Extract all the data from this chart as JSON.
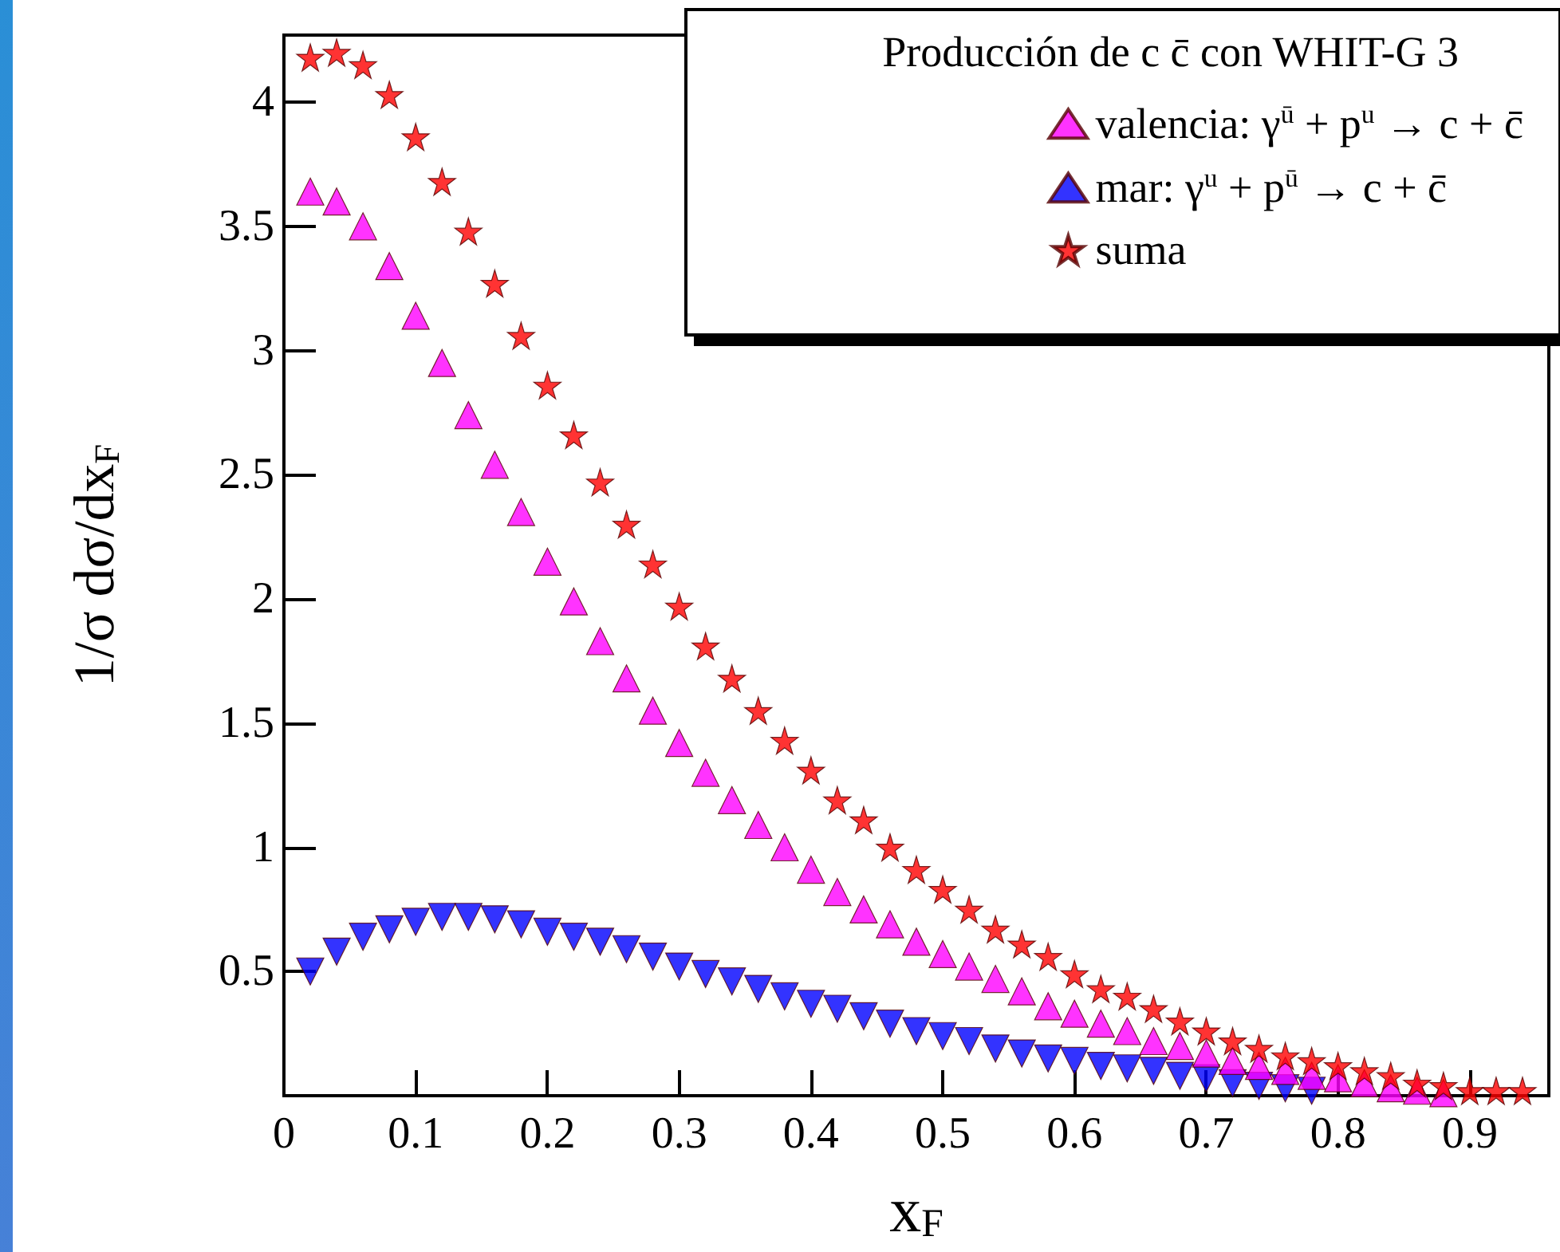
{
  "chart_data": {
    "type": "scatter",
    "xlabel": "x$_{F}$",
    "ylabel": "1/σ dσ/dx$_{F}$",
    "legend_title": "Producción de c c̄ con WHIT-G 3",
    "legend": "top right",
    "grid": false,
    "xlim": [
      0,
      0.96
    ],
    "ylim": [
      0,
      4.27
    ],
    "xticks": [
      0,
      0.1,
      0.2,
      0.3,
      0.4,
      0.5,
      0.6,
      0.7,
      0.8,
      0.9
    ],
    "yticks": [
      0.5,
      1,
      1.5,
      2,
      2.5,
      3,
      3.5,
      4
    ],
    "series": [
      {
        "name": "valencia: γ$^{ū}$ + p$^{u}$ → c + c̄",
        "color": "#ff00ff",
        "marker": "triangle",
        "x": [
          0.02,
          0.04,
          0.06,
          0.08,
          0.1,
          0.12,
          0.14,
          0.16,
          0.18,
          0.2,
          0.22,
          0.24,
          0.26,
          0.28,
          0.3,
          0.32,
          0.34,
          0.36,
          0.38,
          0.4,
          0.42,
          0.44,
          0.46,
          0.48,
          0.5,
          0.52,
          0.54,
          0.56,
          0.58,
          0.6,
          0.62,
          0.64,
          0.66,
          0.68,
          0.7,
          0.72,
          0.74,
          0.76,
          0.78,
          0.8,
          0.82,
          0.84,
          0.86,
          0.88
        ],
        "values": [
          3.64,
          3.6,
          3.5,
          3.34,
          3.14,
          2.95,
          2.74,
          2.54,
          2.35,
          2.15,
          1.99,
          1.83,
          1.68,
          1.55,
          1.42,
          1.3,
          1.19,
          1.09,
          1.0,
          0.91,
          0.82,
          0.75,
          0.69,
          0.62,
          0.57,
          0.52,
          0.47,
          0.42,
          0.36,
          0.33,
          0.29,
          0.26,
          0.22,
          0.2,
          0.17,
          0.14,
          0.12,
          0.1,
          0.08,
          0.07,
          0.05,
          0.03,
          0.02,
          0.01
        ]
      },
      {
        "name": "mar: γ$^{u}$ + p$^{ū}$ → c + c̄",
        "color": "#0000ff",
        "marker": "triangle-down",
        "x": [
          0.02,
          0.04,
          0.06,
          0.08,
          0.1,
          0.12,
          0.14,
          0.16,
          0.18,
          0.2,
          0.22,
          0.24,
          0.26,
          0.28,
          0.3,
          0.32,
          0.34,
          0.36,
          0.38,
          0.4,
          0.42,
          0.44,
          0.46,
          0.48,
          0.5,
          0.52,
          0.54,
          0.56,
          0.58,
          0.6,
          0.62,
          0.64,
          0.66,
          0.68,
          0.7,
          0.72,
          0.74,
          0.76,
          0.78
        ],
        "values": [
          0.5,
          0.58,
          0.64,
          0.67,
          0.7,
          0.72,
          0.72,
          0.71,
          0.69,
          0.66,
          0.64,
          0.62,
          0.59,
          0.56,
          0.52,
          0.49,
          0.46,
          0.43,
          0.4,
          0.37,
          0.35,
          0.32,
          0.29,
          0.26,
          0.24,
          0.22,
          0.19,
          0.17,
          0.15,
          0.14,
          0.12,
          0.11,
          0.1,
          0.08,
          0.07,
          0.05,
          0.04,
          0.03,
          0.02
        ]
      },
      {
        "name": "suma",
        "color": "#ff0000",
        "marker": "star",
        "x": [
          0.02,
          0.04,
          0.06,
          0.08,
          0.1,
          0.12,
          0.14,
          0.16,
          0.18,
          0.2,
          0.22,
          0.24,
          0.26,
          0.28,
          0.3,
          0.32,
          0.34,
          0.36,
          0.38,
          0.4,
          0.42,
          0.44,
          0.46,
          0.48,
          0.5,
          0.52,
          0.54,
          0.56,
          0.58,
          0.6,
          0.62,
          0.64,
          0.66,
          0.68,
          0.7,
          0.72,
          0.74,
          0.76,
          0.78,
          0.8,
          0.82,
          0.84,
          0.86,
          0.88,
          0.9,
          0.92,
          0.94
        ],
        "values": [
          4.18,
          4.2,
          4.15,
          4.03,
          3.86,
          3.68,
          3.48,
          3.27,
          3.06,
          2.86,
          2.66,
          2.47,
          2.3,
          2.14,
          1.97,
          1.81,
          1.68,
          1.55,
          1.43,
          1.31,
          1.19,
          1.11,
          1.0,
          0.91,
          0.83,
          0.75,
          0.67,
          0.61,
          0.56,
          0.49,
          0.43,
          0.4,
          0.35,
          0.3,
          0.26,
          0.22,
          0.19,
          0.16,
          0.14,
          0.12,
          0.1,
          0.08,
          0.05,
          0.04,
          0.02,
          0.02,
          0.02
        ]
      }
    ]
  }
}
